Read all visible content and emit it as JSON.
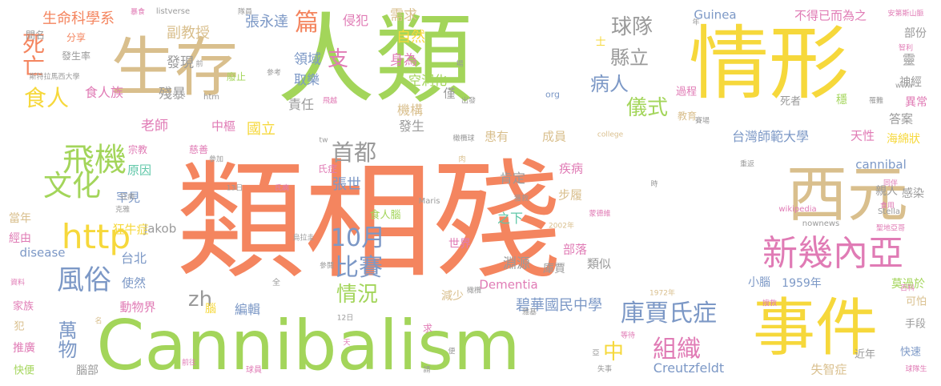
{
  "palette": {
    "coral": "#F4855F",
    "lime": "#A3D55A",
    "yellow": "#F6D83B",
    "tan": "#D9BF8D",
    "gray": "#9A9A9A",
    "pink": "#E07BB5",
    "blue": "#7C98C6",
    "teal": "#5FC7A8"
  },
  "words": [
    {
      "text": "類相殘",
      "color": "coral"
    },
    {
      "text": "人類",
      "color": "lime"
    },
    {
      "text": "情形",
      "color": "yellow"
    },
    {
      "text": "Cannibalism",
      "color": "lime"
    },
    {
      "text": "生存",
      "color": "tan"
    },
    {
      "text": "事件",
      "color": "yellow"
    },
    {
      "text": "西元",
      "color": "tan"
    },
    {
      "text": "新幾內亞",
      "color": "pink"
    },
    {
      "text": "http",
      "color": "yellow"
    },
    {
      "text": "飛機",
      "color": "lime"
    },
    {
      "text": "文化",
      "color": "lime"
    },
    {
      "text": "風俗",
      "color": "blue"
    },
    {
      "text": "庫賈氏症",
      "color": "blue"
    },
    {
      "text": "組織",
      "color": "pink"
    },
    {
      "text": "比賽",
      "color": "blue"
    },
    {
      "text": "10月",
      "color": "blue"
    },
    {
      "text": "情況",
      "color": "lime"
    },
    {
      "text": "首都",
      "color": "gray"
    },
    {
      "text": "儀式",
      "color": "lime"
    },
    {
      "text": "球隊",
      "color": "gray"
    },
    {
      "text": "病人",
      "color": "blue"
    },
    {
      "text": "縣立",
      "color": "gray"
    },
    {
      "text": "死亡",
      "color": "coral"
    },
    {
      "text": "食人",
      "color": "yellow"
    },
    {
      "text": "篇",
      "color": "coral"
    },
    {
      "text": "支",
      "color": "pink"
    },
    {
      "text": "中",
      "color": "yellow"
    },
    {
      "text": "zh",
      "color": "gray"
    },
    {
      "text": "萬物",
      "color": "blue"
    },
    {
      "text": "碧華國民中學",
      "color": "blue"
    },
    {
      "text": "台灣師範大學",
      "color": "blue"
    },
    {
      "text": "生命科學系",
      "color": "coral"
    },
    {
      "text": "張永達",
      "color": "blue"
    },
    {
      "text": "副教授",
      "color": "tan"
    },
    {
      "text": "發現",
      "color": "gray"
    },
    {
      "text": "殘暴",
      "color": "gray"
    },
    {
      "text": "食人族",
      "color": "pink"
    },
    {
      "text": "老師",
      "color": "pink"
    },
    {
      "text": "中樞",
      "color": "pink"
    },
    {
      "text": "國立",
      "color": "yellow"
    },
    {
      "text": "領域",
      "color": "blue"
    },
    {
      "text": "取樂",
      "color": "blue"
    },
    {
      "text": "責任",
      "color": "gray"
    },
    {
      "text": "身為",
      "color": "pink"
    },
    {
      "text": "自然",
      "color": "yellow"
    },
    {
      "text": "需求",
      "color": "tan"
    },
    {
      "text": "侵犯",
      "color": "pink"
    },
    {
      "text": "空洞化",
      "color": "lime"
    },
    {
      "text": "機構",
      "color": "tan"
    },
    {
      "text": "發生",
      "color": "gray"
    },
    {
      "text": "張世",
      "color": "blue"
    },
    {
      "text": "肯定",
      "color": "gray"
    },
    {
      "text": "疾病",
      "color": "pink"
    },
    {
      "text": "之下",
      "color": "teal"
    },
    {
      "text": "步履",
      "color": "tan"
    },
    {
      "text": "淵源",
      "color": "gray"
    },
    {
      "text": "部落",
      "color": "pink"
    },
    {
      "text": "類似",
      "color": "gray"
    },
    {
      "text": "Dementia",
      "color": "pink"
    },
    {
      "text": "Creutzfeldt",
      "color": "blue"
    },
    {
      "text": "Jakob",
      "color": "gray"
    },
    {
      "text": "disease",
      "color": "blue"
    },
    {
      "text": "cannibal",
      "color": "blue"
    },
    {
      "text": "Guinea",
      "color": "blue"
    },
    {
      "text": "不得已而為之",
      "color": "pink"
    },
    {
      "text": "天性",
      "color": "pink"
    },
    {
      "text": "答案",
      "color": "gray"
    },
    {
      "text": "感染",
      "color": "gray"
    },
    {
      "text": "親人",
      "color": "gray"
    },
    {
      "text": "海綿狀",
      "color": "yellow"
    },
    {
      "text": "神經",
      "color": "gray"
    },
    {
      "text": "異常",
      "color": "pink"
    },
    {
      "text": "部份",
      "color": "gray"
    },
    {
      "text": "靈",
      "color": "gray"
    },
    {
      "text": "1959年",
      "color": "blue"
    },
    {
      "text": "莫過於",
      "color": "lime"
    },
    {
      "text": "可怕",
      "color": "tan"
    },
    {
      "text": "手段",
      "color": "gray"
    },
    {
      "text": "快速",
      "color": "blue"
    },
    {
      "text": "近年",
      "color": "gray"
    },
    {
      "text": "失智症",
      "color": "tan"
    },
    {
      "text": "小腦",
      "color": "blue"
    },
    {
      "text": "使然",
      "color": "blue"
    },
    {
      "text": "動物界",
      "color": "pink"
    },
    {
      "text": "腦部",
      "color": "gray"
    },
    {
      "text": "台北",
      "color": "blue"
    },
    {
      "text": "原因",
      "color": "teal"
    },
    {
      "text": "罕見",
      "color": "blue"
    },
    {
      "text": "狂牛症",
      "color": "yellow"
    },
    {
      "text": "當年",
      "color": "tan"
    },
    {
      "text": "經由",
      "color": "pink"
    },
    {
      "text": "推廣",
      "color": "pink"
    },
    {
      "text": "快便",
      "color": "lime"
    },
    {
      "text": "家族",
      "color": "pink"
    },
    {
      "text": "犯",
      "color": "tan"
    },
    {
      "text": "編輯",
      "color": "blue"
    },
    {
      "text": "腦",
      "color": "yellow"
    },
    {
      "text": "宗教",
      "color": "pink"
    },
    {
      "text": "慈善",
      "color": "pink"
    },
    {
      "text": "教育",
      "color": "tan"
    },
    {
      "text": "成員",
      "color": "tan"
    },
    {
      "text": "患有",
      "color": "tan"
    },
    {
      "text": "僅",
      "color": "gray"
    },
    {
      "text": "過程",
      "color": "pink"
    },
    {
      "text": "穩",
      "color": "lime"
    },
    {
      "text": "死者",
      "color": "gray"
    },
    {
      "text": "分享",
      "color": "coral"
    },
    {
      "text": "發生率",
      "color": "gray"
    },
    {
      "text": "間名",
      "color": "gray"
    },
    {
      "text": "斯特拉馬西大學",
      "color": "gray"
    },
    {
      "text": "安第斯山脈",
      "color": "pink"
    },
    {
      "text": "listverse",
      "color": "gray"
    },
    {
      "text": "世界",
      "color": "pink"
    },
    {
      "text": "庫賈",
      "color": "gray"
    },
    {
      "text": "減少",
      "color": "tan"
    },
    {
      "text": "食人腦",
      "color": "lime"
    },
    {
      "text": "wikipedia",
      "color": "pink"
    },
    {
      "text": "nownews",
      "color": "gray"
    },
    {
      "text": "Stella",
      "color": "gray"
    },
    {
      "text": "Maris",
      "color": "gray"
    },
    {
      "text": "college",
      "color": "tan"
    },
    {
      "text": "org",
      "color": "blue"
    },
    {
      "text": "www",
      "color": "gray"
    },
    {
      "text": "htm",
      "color": "gray"
    },
    {
      "text": "tw",
      "color": "gray"
    },
    {
      "text": "2002年",
      "color": "tan"
    },
    {
      "text": "1972年",
      "color": "tan"
    },
    {
      "text": "13日",
      "color": "gray"
    },
    {
      "text": "12日",
      "color": "gray"
    },
    {
      "text": "烏拉圭",
      "color": "gray"
    },
    {
      "text": "蒙德維",
      "color": "pink"
    },
    {
      "text": "聖地亞哥",
      "color": "pink"
    },
    {
      "text": "球隊生",
      "color": "pink"
    },
    {
      "text": "球員",
      "color": "pink"
    },
    {
      "text": "飛越",
      "color": "pink"
    },
    {
      "text": "失事",
      "color": "gray"
    },
    {
      "text": "前往",
      "color": "pink"
    },
    {
      "text": "食用",
      "color": "pink"
    },
    {
      "text": "同伴",
      "color": "pink"
    },
    {
      "text": "橄欖",
      "color": "gray"
    },
    {
      "text": "橄欖球",
      "color": "gray"
    },
    {
      "text": "賽場",
      "color": "gray"
    },
    {
      "text": "搜救",
      "color": "pink"
    },
    {
      "text": "百科",
      "color": "pink"
    },
    {
      "text": "智利",
      "color": "pink"
    },
    {
      "text": "重返",
      "color": "gray"
    },
    {
      "text": "參加",
      "color": "gray"
    },
    {
      "text": "參考",
      "color": "gray"
    },
    {
      "text": "廢止",
      "color": "lime"
    },
    {
      "text": "氏症",
      "color": "pink"
    },
    {
      "text": "氏病",
      "color": "pink"
    },
    {
      "text": "隊員",
      "color": "gray"
    },
    {
      "text": "暴食",
      "color": "pink"
    },
    {
      "text": "肉",
      "color": "tan"
    },
    {
      "text": "全",
      "color": "gray"
    },
    {
      "text": "求",
      "color": "pink"
    },
    {
      "text": "名",
      "color": "tan"
    },
    {
      "text": "天",
      "color": "pink"
    },
    {
      "text": "便",
      "color": "gray"
    },
    {
      "text": "請",
      "color": "gray"
    },
    {
      "text": "士",
      "color": "yellow"
    },
    {
      "text": "場",
      "color": "gray"
    },
    {
      "text": "前",
      "color": "gray"
    },
    {
      "text": "年",
      "color": "gray"
    },
    {
      "text": "時",
      "color": "gray"
    },
    {
      "text": "亞",
      "color": "gray"
    },
    {
      "text": "雅基",
      "color": "gray"
    },
    {
      "text": "參閱",
      "color": "gray"
    },
    {
      "text": "資料",
      "color": "pink"
    },
    {
      "text": "狂病",
      "color": "gray"
    },
    {
      "text": "克雅",
      "color": "gray"
    },
    {
      "text": "等待",
      "color": "pink"
    },
    {
      "text": "出發",
      "color": "gray"
    },
    {
      "text": "獲救",
      "color": "gray"
    },
    {
      "text": "罹難",
      "color": "gray"
    }
  ]
}
